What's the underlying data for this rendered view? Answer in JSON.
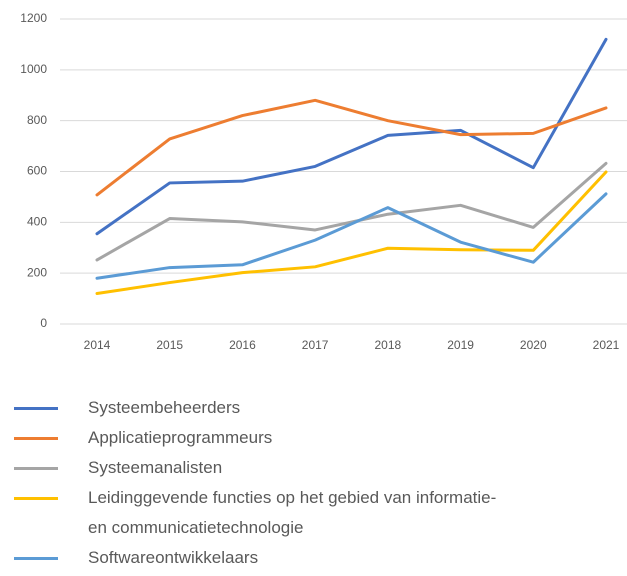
{
  "chart_data": {
    "type": "line",
    "x": [
      "2014",
      "2015",
      "2016",
      "2017",
      "2018",
      "2019",
      "2020",
      "2021"
    ],
    "series": [
      {
        "name": "Systeembeheerders",
        "color": "#4472c4",
        "values": [
          355,
          555,
          562,
          620,
          742,
          762,
          615,
          1120
        ]
      },
      {
        "name": "Applicatieprogrammeurs",
        "color": "#ed7d31",
        "values": [
          508,
          728,
          820,
          880,
          800,
          745,
          750,
          850
        ]
      },
      {
        "name": "Systeemanalisten",
        "color": "#a5a5a5",
        "values": [
          252,
          415,
          402,
          370,
          432,
          467,
          380,
          632
        ]
      },
      {
        "name": "Leidinggevende functies op het gebied van informatie- en communicatietechnologie",
        "color": "#ffc000",
        "values": [
          120,
          163,
          202,
          225,
          298,
          292,
          290,
          598
        ]
      },
      {
        "name": "Softwareontwikkelaars",
        "color": "#5b9bd5",
        "values": [
          180,
          222,
          233,
          330,
          458,
          322,
          243,
          512
        ]
      }
    ],
    "ylim": [
      0,
      1200
    ],
    "yticks": [
      0,
      200,
      400,
      600,
      800,
      1000,
      1200
    ],
    "grid": true,
    "legend": "bottom"
  }
}
